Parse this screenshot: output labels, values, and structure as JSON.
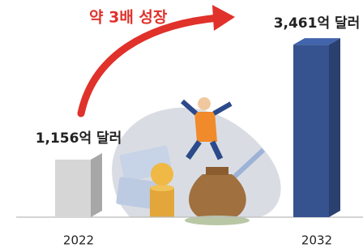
{
  "chart_data": {
    "type": "bar3d",
    "annotation": "약 3배 성장",
    "categories": [
      "2022",
      "2032"
    ],
    "values": [
      1156,
      3461
    ],
    "value_labels": [
      "1,156억 달러",
      "3,461억 달러"
    ],
    "colors": [
      "#d6d6d6",
      "#36538f"
    ],
    "annotation_color": "#e0312b"
  }
}
